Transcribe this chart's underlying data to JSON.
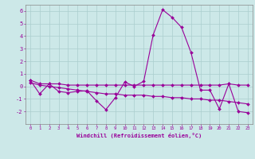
{
  "x": [
    0,
    1,
    2,
    3,
    4,
    5,
    6,
    7,
    8,
    9,
    10,
    11,
    12,
    13,
    14,
    15,
    16,
    17,
    18,
    19,
    20,
    21,
    22,
    23
  ],
  "line_main": [
    0.5,
    -0.6,
    0.2,
    -0.4,
    -0.5,
    -0.4,
    -0.35,
    -1.15,
    -1.85,
    -0.9,
    0.35,
    0.0,
    0.4,
    4.1,
    6.1,
    5.5,
    4.7,
    2.7,
    -0.3,
    -0.3,
    -1.8,
    0.2,
    -2.0,
    -2.1
  ],
  "line_flat": [
    0.5,
    0.2,
    0.2,
    0.2,
    0.1,
    0.1,
    0.1,
    0.1,
    0.1,
    0.1,
    0.1,
    0.1,
    0.1,
    0.1,
    0.1,
    0.1,
    0.1,
    0.1,
    0.1,
    0.1,
    0.1,
    0.2,
    0.1,
    0.1
  ],
  "line_trend": [
    0.3,
    0.1,
    0.0,
    -0.1,
    -0.2,
    -0.3,
    -0.4,
    -0.5,
    -0.6,
    -0.6,
    -0.7,
    -0.7,
    -0.7,
    -0.8,
    -0.8,
    -0.9,
    -0.9,
    -1.0,
    -1.0,
    -1.1,
    -1.1,
    -1.2,
    -1.3,
    -1.4
  ],
  "background_color": "#cce8e8",
  "grid_color": "#aacece",
  "line_color": "#990099",
  "xlabel": "Windchill (Refroidissement éolien,°C)",
  "ylim": [
    -3,
    6.5
  ],
  "xlim": [
    -0.5,
    23.5
  ],
  "yticks": [
    -2,
    -1,
    0,
    1,
    2,
    3,
    4,
    5,
    6
  ],
  "xticks": [
    0,
    1,
    2,
    3,
    4,
    5,
    6,
    7,
    8,
    9,
    10,
    11,
    12,
    13,
    14,
    15,
    16,
    17,
    18,
    19,
    20,
    21,
    22,
    23
  ],
  "marker": "D",
  "markersize": 2.0,
  "linewidth": 0.8
}
